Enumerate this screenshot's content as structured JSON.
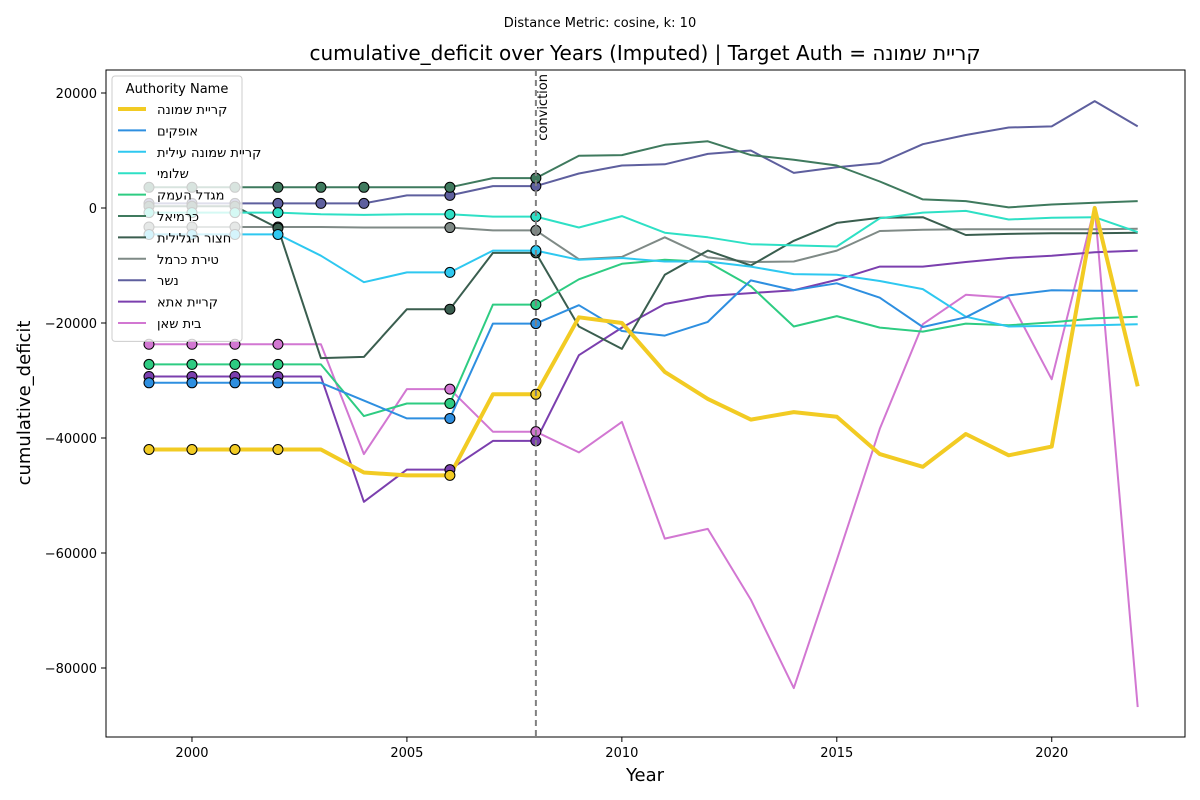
{
  "chart_data": {
    "type": "line",
    "suptitle": "Distance Metric: cosine, k: 10",
    "title": "cumulative_deficit over Years (Imputed) | Target Auth = קריית שמונה",
    "xlabel": "Year",
    "ylabel": "cumulative_deficit",
    "xlim": [
      1998,
      2023.1
    ],
    "ylim": [
      -92000,
      24000
    ],
    "x_ticks": [
      2000,
      2005,
      2010,
      2015,
      2020
    ],
    "y_ticks": [
      -80000,
      -60000,
      -40000,
      -20000,
      0,
      20000
    ],
    "x_tick_labels": [
      "2000",
      "2005",
      "2010",
      "2015",
      "2020"
    ],
    "y_tick_labels": [
      "−80000",
      "−60000",
      "−40000",
      "−20000",
      "0",
      "20000"
    ],
    "grid": false,
    "legend_title": "Authority Name",
    "legend_location": "top-left",
    "annotation": {
      "x": 2008,
      "label": "conviction"
    },
    "years": [
      1999,
      2000,
      2001,
      2002,
      2003,
      2004,
      2005,
      2006,
      2007,
      2008,
      2009,
      2010,
      2011,
      2012,
      2013,
      2014,
      2015,
      2016,
      2017,
      2018,
      2019,
      2020,
      2021,
      2022
    ],
    "series": [
      {
        "name": "קריית שמונה",
        "color": "#f2cb23",
        "width": 4,
        "imputed": [
          1999,
          2000,
          2001,
          2002,
          2006,
          2008
        ],
        "values": [
          -42000,
          -42000,
          -42000,
          -42000,
          -42000,
          -46000,
          -46500,
          -46500,
          -32400,
          -32400,
          -19000,
          -20000,
          -28500,
          -33200,
          -36800,
          -35500,
          -36300,
          -42800,
          -45000,
          -39300,
          -43000,
          -41500,
          0,
          -31000
        ]
      },
      {
        "name": "אופקים",
        "color": "#2e8fe0",
        "width": 2,
        "imputed": [
          1999,
          2000,
          2001,
          2002,
          2006,
          2008
        ],
        "values": [
          -30400,
          -30400,
          -30400,
          -30400,
          -30400,
          -33500,
          -36600,
          -36600,
          -20100,
          -20100,
          -16900,
          -21400,
          -22200,
          -19800,
          -12600,
          -14300,
          -13100,
          -15600,
          -20700,
          -19000,
          -15200,
          -14300,
          -14400,
          -14400
        ]
      },
      {
        "name": "קריית שמונה עילית",
        "color": "#2ec8f0",
        "width": 2,
        "imputed": [
          1999,
          2000,
          2001,
          2002,
          2006,
          2008
        ],
        "values": [
          -4600,
          -4600,
          -4600,
          -4600,
          -8300,
          -12900,
          -11200,
          -11200,
          -7400,
          -7400,
          -9000,
          -8700,
          -9300,
          -9300,
          -10200,
          -11500,
          -11600,
          -12700,
          -14100,
          -18900,
          -20600,
          -20500,
          -20400,
          -20200
        ]
      },
      {
        "name": "שלומי",
        "color": "#2ee0c5",
        "width": 2,
        "imputed": [
          1999,
          2000,
          2001,
          2002,
          2006,
          2008
        ],
        "values": [
          -800,
          -800,
          -800,
          -800,
          -1100,
          -1200,
          -1100,
          -1100,
          -1500,
          -1500,
          -3400,
          -1400,
          -4300,
          -5100,
          -6300,
          -6500,
          -6700,
          -1800,
          -800,
          -500,
          -2000,
          -1700,
          -1600,
          -4200
        ]
      },
      {
        "name": "מגדל העמק",
        "color": "#2ecc82",
        "width": 2,
        "imputed": [
          1999,
          2000,
          2001,
          2002,
          2006,
          2008
        ],
        "values": [
          -27200,
          -27200,
          -27200,
          -27200,
          -27200,
          -36200,
          -34000,
          -34000,
          -16800,
          -16800,
          -12400,
          -9700,
          -9000,
          -9400,
          -13600,
          -20600,
          -18800,
          -20800,
          -21500,
          -20100,
          -20400,
          -19900,
          -19200,
          -18900
        ]
      },
      {
        "name": "כרמיאל",
        "color": "#3f7a5e",
        "width": 2,
        "imputed": [
          1999,
          2000,
          2001,
          2002,
          2003,
          2004,
          2006,
          2008
        ],
        "values": [
          3600,
          3600,
          3600,
          3600,
          3600,
          3600,
          3600,
          3600,
          5200,
          5200,
          9100,
          9200,
          11000,
          11600,
          9200,
          8400,
          7400,
          4600,
          1500,
          1200,
          100,
          600,
          900,
          1200
        ]
      },
      {
        "name": "חצור הגלילית",
        "color": "#3a5e4f",
        "width": 2,
        "imputed": [
          1999,
          2000,
          2001,
          2002,
          2006,
          2008
        ],
        "values": [
          300,
          300,
          300,
          -3500,
          -26100,
          -25900,
          -17600,
          -17600,
          -7800,
          -7800,
          -20600,
          -24500,
          -11600,
          -7400,
          -10000,
          -5700,
          -2600,
          -1700,
          -1600,
          -4700,
          -4500,
          -4400,
          -4400,
          -4300
        ]
      },
      {
        "name": "טירת כרמל",
        "color": "#7f8a86",
        "width": 2,
        "imputed": [
          1999,
          2000,
          2001,
          2002,
          2006,
          2008
        ],
        "values": [
          -3300,
          -3300,
          -3300,
          -3300,
          -3300,
          -3400,
          -3400,
          -3400,
          -3900,
          -3900,
          -8900,
          -8500,
          -5100,
          -8600,
          -9400,
          -9300,
          -7400,
          -4000,
          -3800,
          -3700,
          -3700,
          -3700,
          -3700,
          -3600
        ]
      },
      {
        "name": "נשר",
        "color": "#5e5f9e",
        "width": 2,
        "imputed": [
          1999,
          2000,
          2001,
          2002,
          2003,
          2004,
          2006,
          2008
        ],
        "values": [
          800,
          800,
          800,
          800,
          800,
          800,
          2200,
          2200,
          3800,
          3800,
          6000,
          7400,
          7600,
          9400,
          10000,
          6100,
          7100,
          7800,
          11100,
          12700,
          14000,
          14200,
          18600,
          14200
        ]
      },
      {
        "name": "קריית אתא",
        "color": "#7b3fae",
        "width": 2,
        "imputed": [
          1999,
          2000,
          2001,
          2002,
          2006,
          2008
        ],
        "values": [
          -29300,
          -29300,
          -29300,
          -29300,
          -29300,
          -51100,
          -45500,
          -45500,
          -40500,
          -40500,
          -25600,
          -20800,
          -16700,
          -15300,
          -14800,
          -14300,
          -12500,
          -10200,
          -10200,
          -9400,
          -8700,
          -8300,
          -7700,
          -7400
        ]
      },
      {
        "name": "בית שאן",
        "color": "#d277d2",
        "width": 2,
        "imputed": [
          1999,
          2000,
          2001,
          2002,
          2006,
          2008
        ],
        "values": [
          -23700,
          -23700,
          -23700,
          -23700,
          -23700,
          -42800,
          -31500,
          -31500,
          -38900,
          -38900,
          -42500,
          -37200,
          -57500,
          -55800,
          -68100,
          -83500,
          -61200,
          -38400,
          -20200,
          -15100,
          -15600,
          -29800,
          200,
          -86800
        ]
      }
    ]
  }
}
